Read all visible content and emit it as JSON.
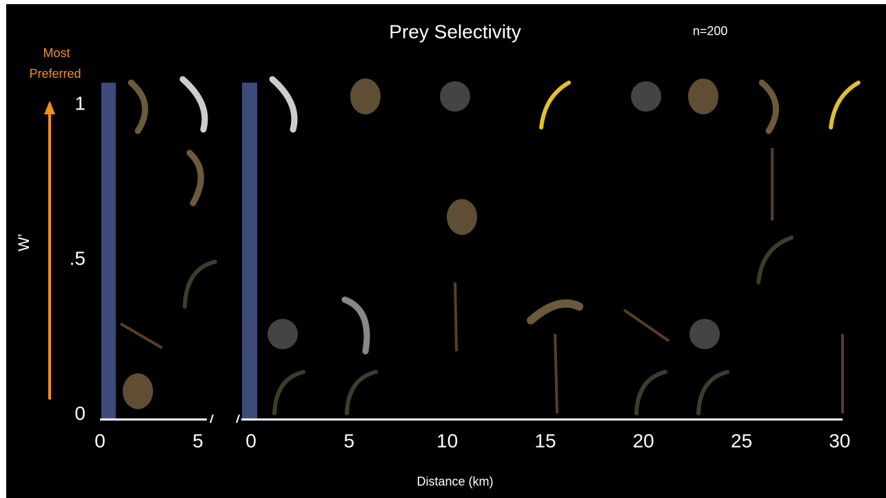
{
  "title": "Prey Selectivity",
  "sample_size": "n=200",
  "annotation": {
    "line1": "Most",
    "line2": "Preferred"
  },
  "y_axis": {
    "label": "W’",
    "ticks": [
      "1",
      ".5",
      "0"
    ]
  },
  "x_axis": {
    "label": "Distance (km)",
    "left_ticks": [
      "0",
      "5"
    ],
    "right_ticks": [
      "0",
      "5",
      "10",
      "15",
      "20",
      "25",
      "30"
    ]
  }
}
